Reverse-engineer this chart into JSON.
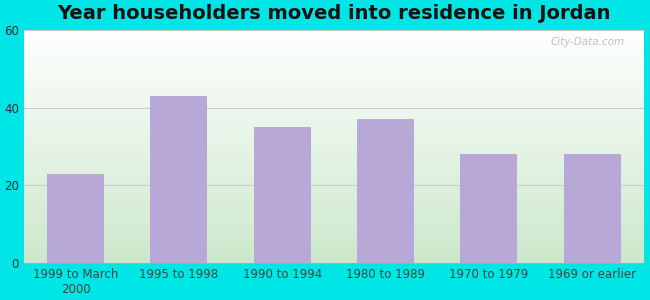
{
  "title": "Year householders moved into residence in Jordan",
  "categories": [
    "1999 to March\n2000",
    "1995 to 1998",
    "1990 to 1994",
    "1980 to 1989",
    "1970 to 1979",
    "1969 or earlier"
  ],
  "values": [
    23,
    43,
    35,
    37,
    28,
    28
  ],
  "bar_color": "#b8a8d8",
  "background_color": "#00e5e5",
  "plot_bg_top": "#ffffff",
  "plot_bg_bottom": "#cce8cc",
  "ylim": [
    0,
    60
  ],
  "yticks": [
    0,
    20,
    40,
    60
  ],
  "grid_color": "#cccccc",
  "title_fontsize": 14,
  "tick_fontsize": 8.5,
  "watermark": "City-Data.com"
}
